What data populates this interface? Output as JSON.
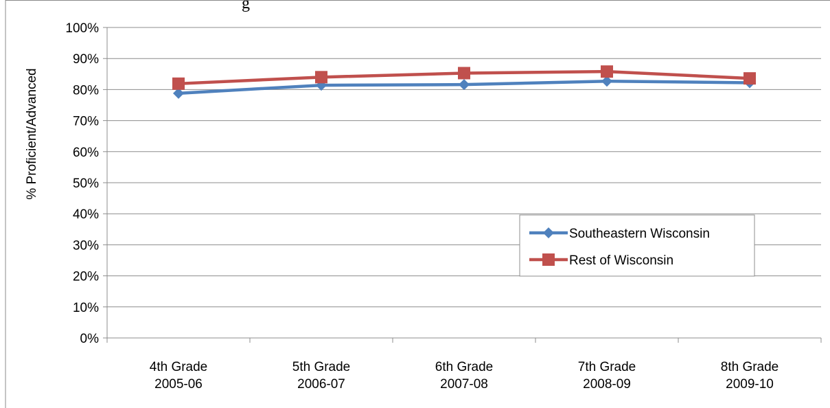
{
  "page": {
    "cut_heading_text": "g"
  },
  "chart_data": {
    "type": "line",
    "title": "",
    "xlabel": "",
    "ylabel": "% Proficient/Advanced",
    "categories": [
      [
        "4th Grade",
        "2005-06"
      ],
      [
        "5th Grade",
        "2006-07"
      ],
      [
        "6th Grade",
        "2007-08"
      ],
      [
        "7th Grade",
        "2008-09"
      ],
      [
        "8th Grade",
        "2009-10"
      ]
    ],
    "ylim": [
      0,
      100
    ],
    "yticks": [
      0,
      10,
      20,
      30,
      40,
      50,
      60,
      70,
      80,
      90,
      100
    ],
    "ytick_format": "%",
    "grid": true,
    "legend_position": "center-right",
    "series": [
      {
        "name": "Southeastern Wisconsin",
        "values": [
          78.8,
          81.4,
          81.6,
          82.7,
          82.2
        ],
        "color": "#4F81BD",
        "marker": "diamond"
      },
      {
        "name": "Rest of Wisconsin",
        "values": [
          81.9,
          84.0,
          85.3,
          85.8,
          83.6
        ],
        "color": "#C0504D",
        "marker": "square"
      }
    ]
  }
}
